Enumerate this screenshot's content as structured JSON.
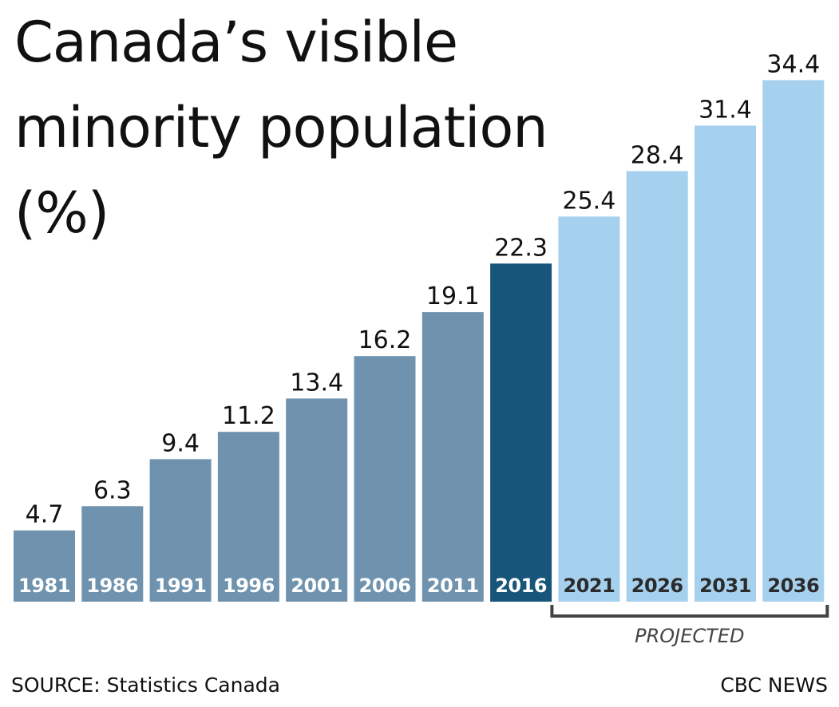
{
  "title_lines": [
    "Canada’s visible",
    "minority population",
    "(%)"
  ],
  "source": "SOURCE: Statistics Canada",
  "brand": "CBC NEWS",
  "projected_label": "PROJECTED",
  "colors": {
    "historical": "#6f93ae",
    "current": "#17557a",
    "projected": "#a6d1ee",
    "text_dark": "#111111",
    "label_light": "#ffffff",
    "label_dark": "#2b2b2b",
    "bracket": "#444444"
  },
  "chart_data": {
    "type": "bar",
    "title": "Canada’s visible minority population (%)",
    "xlabel": "",
    "ylabel": "%",
    "ylim": [
      0,
      35
    ],
    "grid": false,
    "categories": [
      "1981",
      "1986",
      "1991",
      "1996",
      "2001",
      "2006",
      "2011",
      "2016",
      "2021",
      "2026",
      "2031",
      "2036"
    ],
    "values": [
      4.7,
      6.3,
      9.4,
      11.2,
      13.4,
      16.2,
      19.1,
      22.3,
      25.4,
      28.4,
      31.4,
      34.4
    ],
    "value_labels": [
      "4.7",
      "6.3",
      "9.4",
      "11.2",
      "13.4",
      "16.2",
      "19.1",
      "22.3",
      "25.4",
      "28.4",
      "31.4",
      "34.4"
    ],
    "kinds": [
      "historical",
      "historical",
      "historical",
      "historical",
      "historical",
      "historical",
      "historical",
      "current",
      "projected",
      "projected",
      "projected",
      "projected"
    ],
    "annotation": "PROJECTED"
  }
}
